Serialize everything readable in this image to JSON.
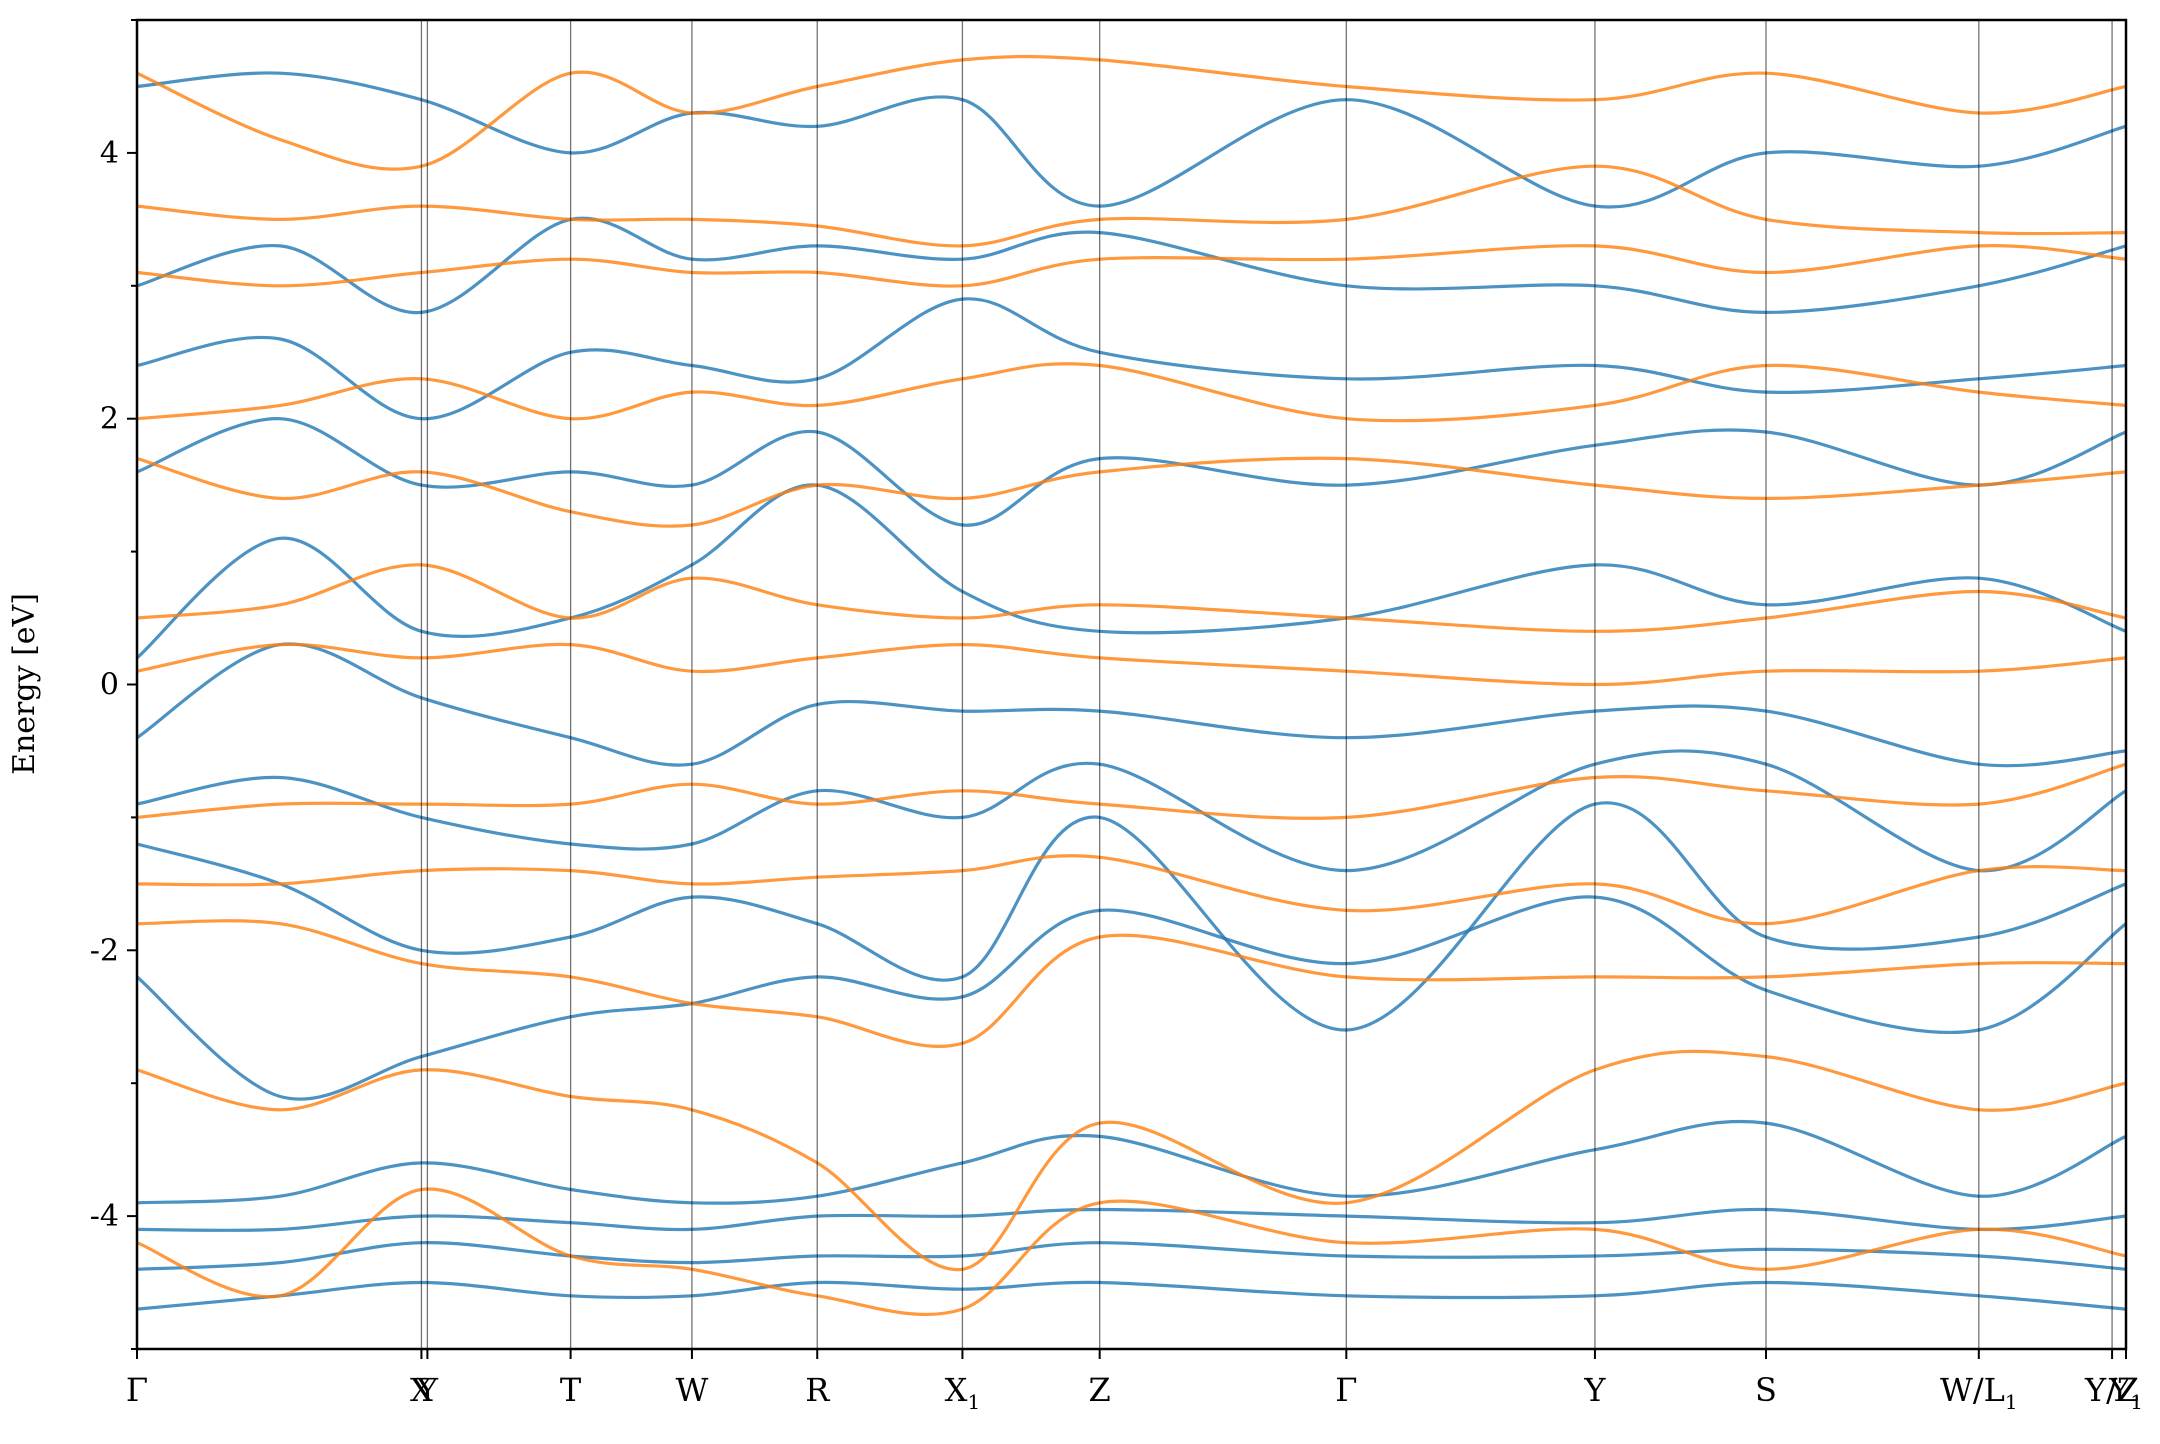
{
  "chart_data": {
    "type": "line",
    "title": "",
    "xlabel": "",
    "ylabel": "Energy [eV]",
    "ylim": [
      -5,
      5
    ],
    "yticks": [
      -4,
      -2,
      0,
      2,
      4
    ],
    "ytick_labels": [
      "-4",
      "-2",
      "0",
      "2",
      "4"
    ],
    "grid": false,
    "legend": "none",
    "colors": {
      "spin_up": "#1f77b4",
      "spin_down": "#ff7f0e"
    },
    "kpath_ticks": [
      {
        "x": 0.0,
        "label": "Γ",
        "sub": ""
      },
      {
        "x": 0.143,
        "label": "X",
        "sub": ""
      },
      {
        "x": 0.146,
        "label": "Y",
        "sub": ""
      },
      {
        "x": 0.218,
        "label": "T",
        "sub": ""
      },
      {
        "x": 0.279,
        "label": "W",
        "sub": ""
      },
      {
        "x": 0.342,
        "label": "R",
        "sub": ""
      },
      {
        "x": 0.415,
        "label": "X",
        "sub": "1"
      },
      {
        "x": 0.484,
        "label": "Z",
        "sub": ""
      },
      {
        "x": 0.608,
        "label": "Γ",
        "sub": ""
      },
      {
        "x": 0.733,
        "label": "Y",
        "sub": ""
      },
      {
        "x": 0.819,
        "label": "S",
        "sub": ""
      },
      {
        "x": 0.926,
        "label": "W/L",
        "sub": "1"
      },
      {
        "x": 0.993,
        "label": "Y/Z",
        "sub": ""
      },
      {
        "x": 1.0,
        "label": "Y",
        "sub": "1"
      }
    ],
    "series": [
      {
        "bands": [
          {
            "x": [
              0,
              0.072,
              0.143,
              0.218,
              0.279,
              0.342,
              0.415,
              0.484,
              0.608,
              0.733,
              0.819,
              0.926,
              1.0
            ],
            "y": [
              -4.7,
              -4.6,
              -4.5,
              -4.6,
              -4.6,
              -4.5,
              -4.55,
              -4.5,
              -4.6,
              -4.6,
              -4.5,
              -4.6,
              -4.7
            ]
          },
          {
            "x": [
              0,
              0.072,
              0.143,
              0.218,
              0.279,
              0.342,
              0.415,
              0.484,
              0.608,
              0.733,
              0.819,
              0.926,
              1.0
            ],
            "y": [
              -4.4,
              -4.35,
              -4.2,
              -4.3,
              -4.35,
              -4.3,
              -4.3,
              -4.2,
              -4.3,
              -4.3,
              -4.25,
              -4.3,
              -4.4
            ]
          },
          {
            "x": [
              0,
              0.072,
              0.143,
              0.218,
              0.279,
              0.342,
              0.415,
              0.484,
              0.608,
              0.733,
              0.819,
              0.926,
              1.0
            ],
            "y": [
              -4.1,
              -4.1,
              -4.0,
              -4.05,
              -4.1,
              -4.0,
              -4.0,
              -3.95,
              -4.0,
              -4.05,
              -3.95,
              -4.1,
              -4.0
            ]
          },
          {
            "x": [
              0,
              0.072,
              0.143,
              0.218,
              0.279,
              0.342,
              0.415,
              0.484,
              0.608,
              0.733,
              0.819,
              0.926,
              1.0
            ],
            "y": [
              -3.9,
              -3.85,
              -3.6,
              -3.8,
              -3.9,
              -3.85,
              -3.6,
              -3.4,
              -3.85,
              -3.5,
              -3.3,
              -3.85,
              -3.4
            ]
          },
          {
            "x": [
              0,
              0.072,
              0.143,
              0.218,
              0.279,
              0.342,
              0.415,
              0.484,
              0.608,
              0.733,
              0.819,
              0.926,
              1.0
            ],
            "y": [
              -2.2,
              -3.1,
              -2.8,
              -2.5,
              -2.4,
              -2.2,
              -2.35,
              -1.7,
              -2.1,
              -1.6,
              -2.3,
              -2.6,
              -1.8
            ]
          },
          {
            "x": [
              0,
              0.072,
              0.143,
              0.218,
              0.279,
              0.342,
              0.415,
              0.484,
              0.608,
              0.733,
              0.819,
              0.926,
              1.0
            ],
            "y": [
              -1.2,
              -1.5,
              -2.0,
              -1.9,
              -1.6,
              -1.8,
              -2.2,
              -1.0,
              -2.6,
              -0.9,
              -1.9,
              -1.9,
              -1.5
            ]
          },
          {
            "x": [
              0,
              0.072,
              0.143,
              0.218,
              0.279,
              0.342,
              0.415,
              0.484,
              0.608,
              0.733,
              0.819,
              0.926,
              1.0
            ],
            "y": [
              -0.9,
              -0.7,
              -1.0,
              -1.2,
              -1.2,
              -0.8,
              -1.0,
              -0.6,
              -1.4,
              -0.6,
              -0.6,
              -1.4,
              -0.8
            ]
          },
          {
            "x": [
              0,
              0.072,
              0.143,
              0.218,
              0.279,
              0.342,
              0.415,
              0.484,
              0.608,
              0.733,
              0.819,
              0.926,
              1.0
            ],
            "y": [
              -0.4,
              0.3,
              -0.1,
              -0.4,
              -0.6,
              -0.15,
              -0.2,
              -0.2,
              -0.4,
              -0.2,
              -0.2,
              -0.6,
              -0.5
            ]
          },
          {
            "x": [
              0,
              0.072,
              0.143,
              0.218,
              0.279,
              0.342,
              0.415,
              0.484,
              0.608,
              0.733,
              0.819,
              0.926,
              1.0
            ],
            "y": [
              0.2,
              1.1,
              0.4,
              0.5,
              0.9,
              1.5,
              0.7,
              0.4,
              0.5,
              0.9,
              0.6,
              0.8,
              0.4
            ]
          },
          {
            "x": [
              0,
              0.072,
              0.143,
              0.218,
              0.279,
              0.342,
              0.415,
              0.484,
              0.608,
              0.733,
              0.819,
              0.926,
              1.0
            ],
            "y": [
              1.6,
              2.0,
              1.5,
              1.6,
              1.5,
              1.9,
              1.2,
              1.7,
              1.5,
              1.8,
              1.9,
              1.5,
              1.9
            ]
          },
          {
            "x": [
              0,
              0.072,
              0.143,
              0.218,
              0.279,
              0.342,
              0.415,
              0.484,
              0.608,
              0.733,
              0.819,
              0.926,
              1.0
            ],
            "y": [
              2.4,
              2.6,
              2.0,
              2.5,
              2.4,
              2.3,
              2.9,
              2.5,
              2.3,
              2.4,
              2.2,
              2.3,
              2.4
            ]
          },
          {
            "x": [
              0,
              0.072,
              0.143,
              0.218,
              0.279,
              0.342,
              0.415,
              0.484,
              0.608,
              0.733,
              0.819,
              0.926,
              1.0
            ],
            "y": [
              3.0,
              3.3,
              2.8,
              3.5,
              3.2,
              3.3,
              3.2,
              3.4,
              3.0,
              3.0,
              2.8,
              3.0,
              3.3
            ]
          },
          {
            "x": [
              0,
              0.072,
              0.143,
              0.218,
              0.279,
              0.342,
              0.415,
              0.484,
              0.608,
              0.733,
              0.819,
              0.926,
              1.0
            ],
            "y": [
              4.5,
              4.6,
              4.4,
              4.0,
              4.3,
              4.2,
              4.4,
              3.6,
              4.4,
              3.6,
              4.0,
              3.9,
              4.2
            ]
          }
        ]
      },
      {
        "bands": [
          {
            "x": [
              0,
              0.072,
              0.143,
              0.218,
              0.279,
              0.342,
              0.415,
              0.484,
              0.608,
              0.733,
              0.819,
              0.926,
              1.0
            ],
            "y": [
              -4.2,
              -4.6,
              -3.8,
              -4.3,
              -4.4,
              -4.6,
              -4.7,
              -3.9,
              -4.2,
              -4.1,
              -4.4,
              -4.1,
              -4.3
            ]
          },
          {
            "x": [
              0,
              0.072,
              0.143,
              0.218,
              0.279,
              0.342,
              0.415,
              0.484,
              0.608,
              0.733,
              0.819,
              0.926,
              1.0
            ],
            "y": [
              -2.9,
              -3.2,
              -2.9,
              -3.1,
              -3.2,
              -3.6,
              -4.4,
              -3.3,
              -3.9,
              -2.9,
              -2.8,
              -3.2,
              -3.0
            ]
          },
          {
            "x": [
              0,
              0.072,
              0.143,
              0.218,
              0.279,
              0.342,
              0.415,
              0.484,
              0.608,
              0.733,
              0.819,
              0.926,
              1.0
            ],
            "y": [
              -1.8,
              -1.8,
              -2.1,
              -2.2,
              -2.4,
              -2.5,
              -2.7,
              -1.9,
              -2.2,
              -2.2,
              -2.2,
              -2.1,
              -2.1
            ]
          },
          {
            "x": [
              0,
              0.072,
              0.143,
              0.218,
              0.279,
              0.342,
              0.415,
              0.484,
              0.608,
              0.733,
              0.819,
              0.926,
              1.0
            ],
            "y": [
              -1.5,
              -1.5,
              -1.4,
              -1.4,
              -1.5,
              -1.45,
              -1.4,
              -1.3,
              -1.7,
              -1.5,
              -1.8,
              -1.4,
              -1.4
            ]
          },
          {
            "x": [
              0,
              0.072,
              0.143,
              0.218,
              0.279,
              0.342,
              0.415,
              0.484,
              0.608,
              0.733,
              0.819,
              0.926,
              1.0
            ],
            "y": [
              -1.0,
              -0.9,
              -0.9,
              -0.9,
              -0.75,
              -0.9,
              -0.8,
              -0.9,
              -1.0,
              -0.7,
              -0.8,
              -0.9,
              -0.6
            ]
          },
          {
            "x": [
              0,
              0.072,
              0.143,
              0.218,
              0.279,
              0.342,
              0.415,
              0.484,
              0.608,
              0.733,
              0.819,
              0.926,
              1.0
            ],
            "y": [
              0.1,
              0.3,
              0.2,
              0.3,
              0.1,
              0.2,
              0.3,
              0.2,
              0.1,
              0.0,
              0.1,
              0.1,
              0.2
            ]
          },
          {
            "x": [
              0,
              0.072,
              0.143,
              0.218,
              0.279,
              0.342,
              0.415,
              0.484,
              0.608,
              0.733,
              0.819,
              0.926,
              1.0
            ],
            "y": [
              0.5,
              0.6,
              0.9,
              0.5,
              0.8,
              0.6,
              0.5,
              0.6,
              0.5,
              0.4,
              0.5,
              0.7,
              0.5
            ]
          },
          {
            "x": [
              0,
              0.072,
              0.143,
              0.218,
              0.279,
              0.342,
              0.415,
              0.484,
              0.608,
              0.733,
              0.819,
              0.926,
              1.0
            ],
            "y": [
              1.7,
              1.4,
              1.6,
              1.3,
              1.2,
              1.5,
              1.4,
              1.6,
              1.7,
              1.5,
              1.4,
              1.5,
              1.6
            ]
          },
          {
            "x": [
              0,
              0.072,
              0.143,
              0.218,
              0.279,
              0.342,
              0.415,
              0.484,
              0.608,
              0.733,
              0.819,
              0.926,
              1.0
            ],
            "y": [
              2.0,
              2.1,
              2.3,
              2.0,
              2.2,
              2.1,
              2.3,
              2.4,
              2.0,
              2.1,
              2.4,
              2.2,
              2.1
            ]
          },
          {
            "x": [
              0,
              0.072,
              0.143,
              0.218,
              0.279,
              0.342,
              0.415,
              0.484,
              0.608,
              0.733,
              0.819,
              0.926,
              1.0
            ],
            "y": [
              3.1,
              3.0,
              3.1,
              3.2,
              3.1,
              3.1,
              3.0,
              3.2,
              3.2,
              3.3,
              3.1,
              3.3,
              3.2
            ]
          },
          {
            "x": [
              0,
              0.072,
              0.143,
              0.218,
              0.279,
              0.342,
              0.415,
              0.484,
              0.608,
              0.733,
              0.819,
              0.926,
              1.0
            ],
            "y": [
              3.6,
              3.5,
              3.6,
              3.5,
              3.5,
              3.45,
              3.3,
              3.5,
              3.5,
              3.9,
              3.5,
              3.4,
              3.4
            ]
          },
          {
            "x": [
              0,
              0.072,
              0.143,
              0.218,
              0.279,
              0.342,
              0.415,
              0.484,
              0.608,
              0.733,
              0.819,
              0.926,
              1.0
            ],
            "y": [
              4.6,
              4.1,
              3.9,
              4.6,
              4.3,
              4.5,
              4.7,
              4.7,
              4.5,
              4.4,
              4.6,
              4.3,
              4.5
            ]
          }
        ]
      }
    ]
  }
}
